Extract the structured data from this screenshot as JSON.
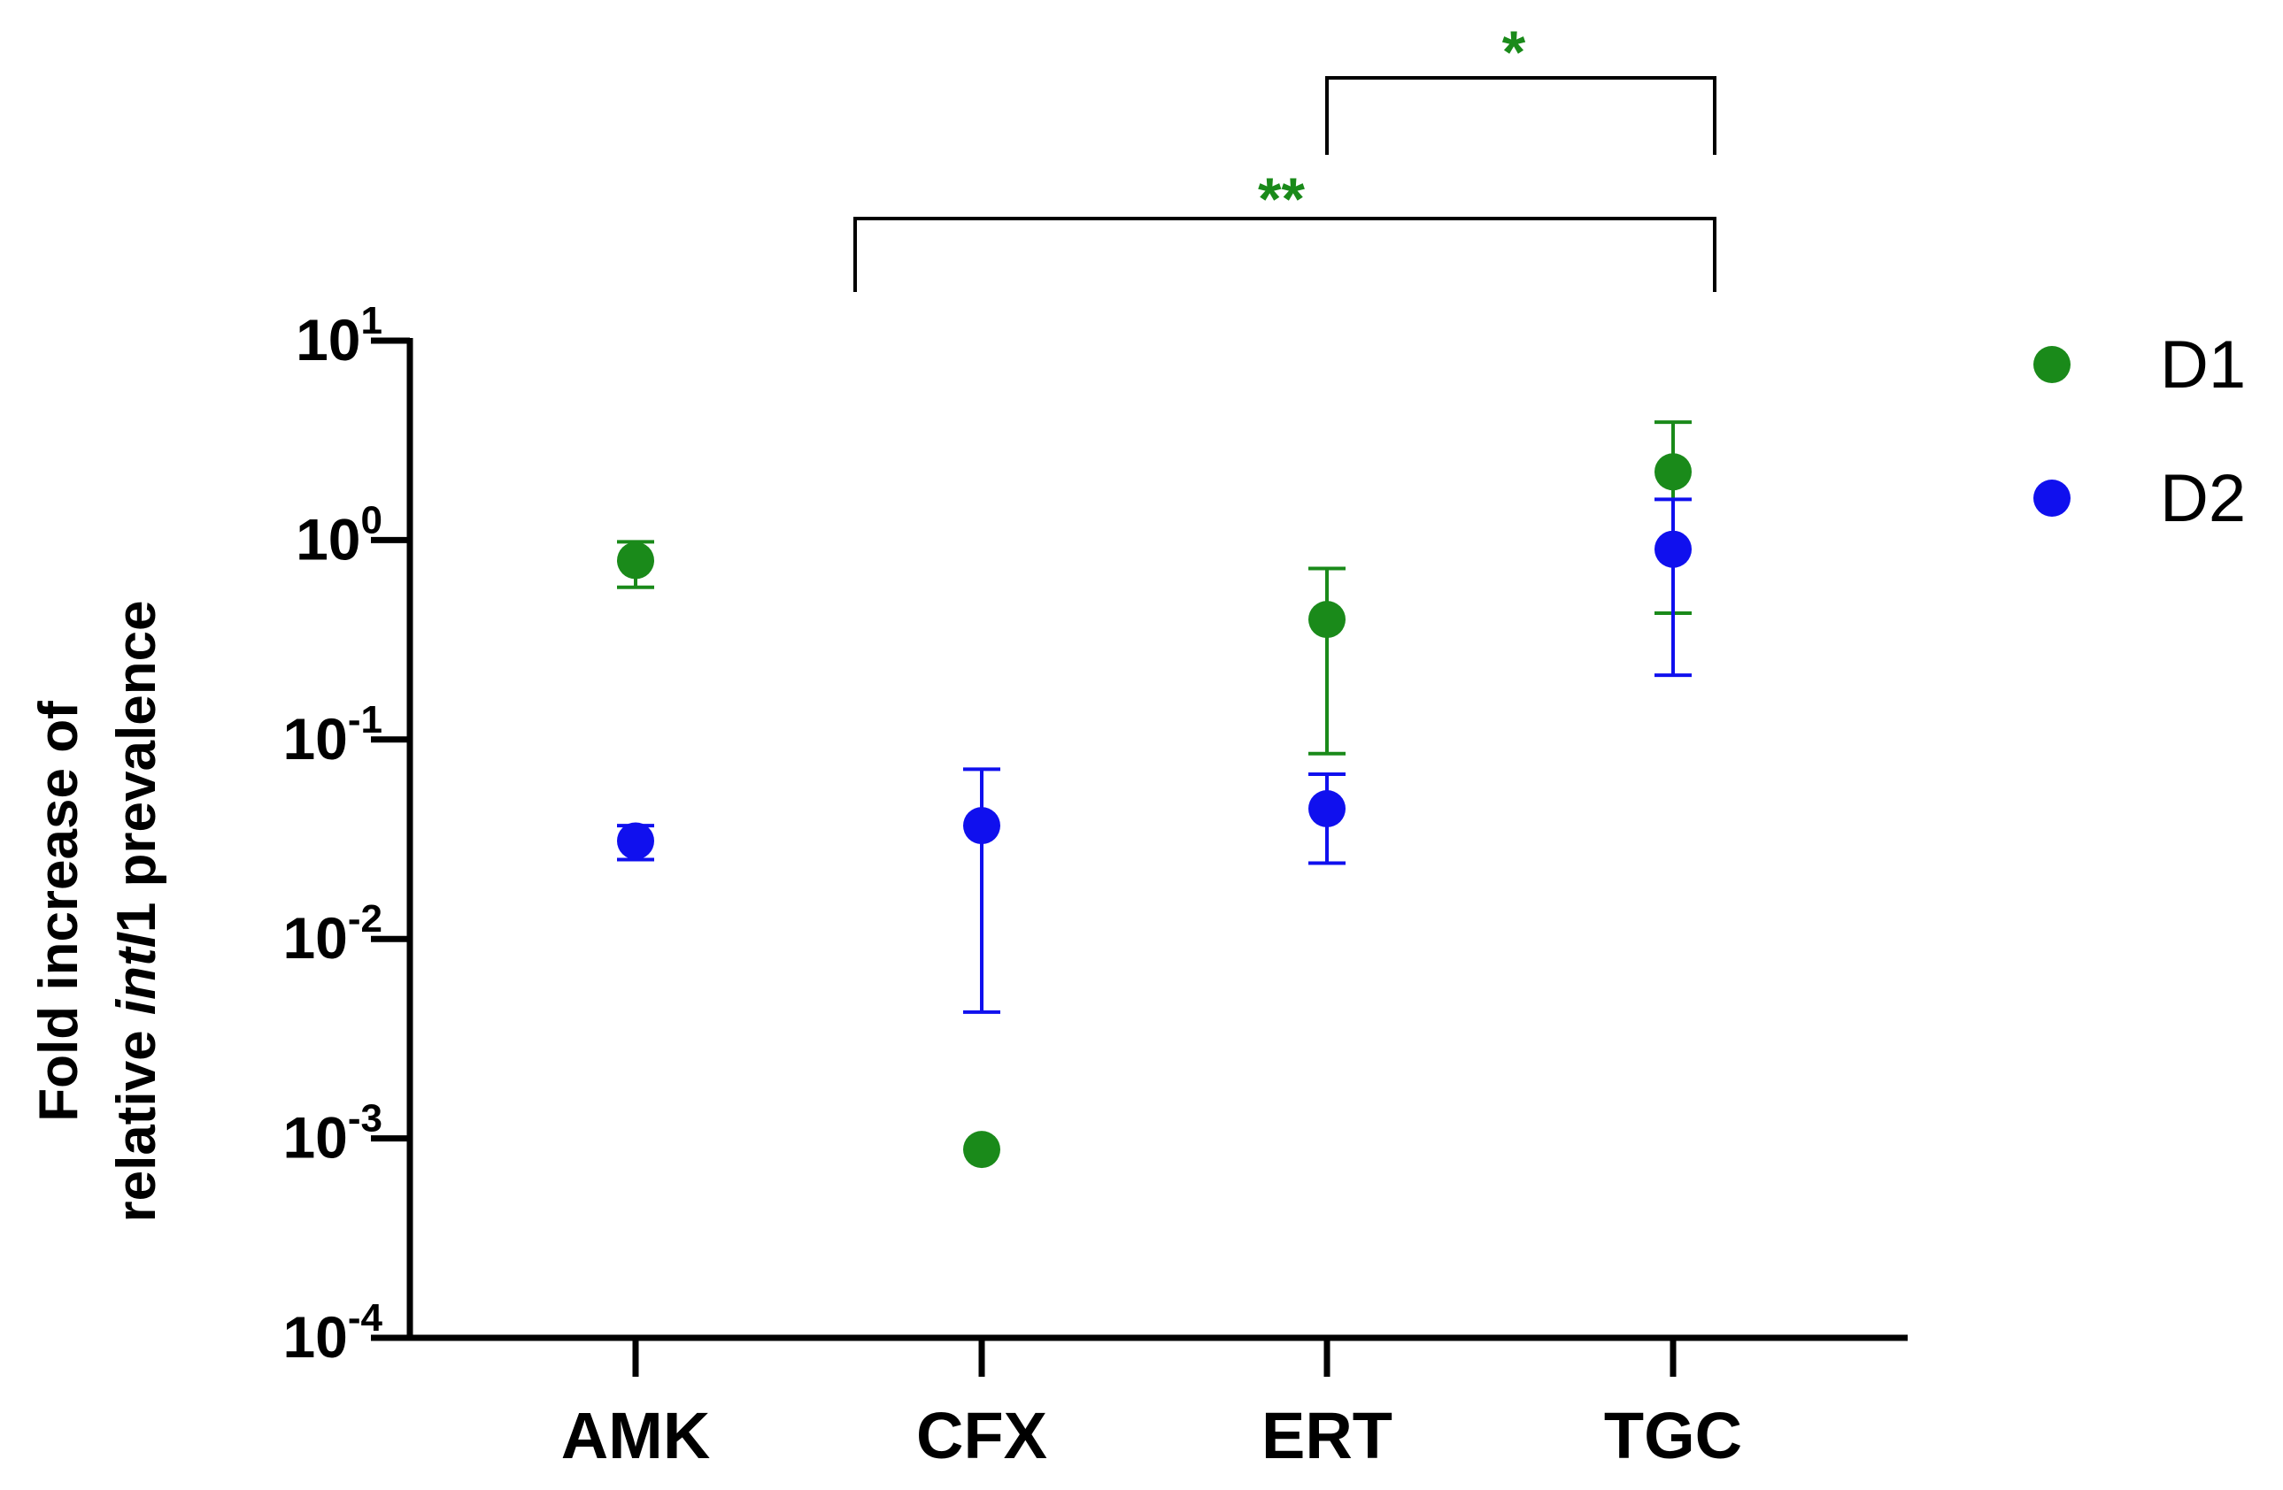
{
  "chart_data": {
    "type": "scatter",
    "title": "",
    "xlabel": "",
    "ylabel_line1": "Fold increase of",
    "ylabel_line2_pre": "relative ",
    "ylabel_line2_italic": "intI",
    "ylabel_line2_post": "1 prevalence",
    "yscale": "log",
    "ylim": [
      0.0001,
      10
    ],
    "yticks": [
      {
        "base": "10",
        "exp": "1",
        "value": 10
      },
      {
        "base": "10",
        "exp": "0",
        "value": 1
      },
      {
        "base": "10",
        "exp": "-1",
        "value": 0.1
      },
      {
        "base": "10",
        "exp": "-2",
        "value": 0.01
      },
      {
        "base": "10",
        "exp": "-3",
        "value": 0.001
      },
      {
        "base": "10",
        "exp": "-4",
        "value": 0.0001
      }
    ],
    "categories": [
      "AMK",
      "CFX",
      "ERT",
      "TGC"
    ],
    "series": [
      {
        "name": "D1",
        "color": "#1a8a1a",
        "values": [
          0.79,
          0.00088,
          0.4,
          2.2
        ],
        "err_low": [
          0.58,
          null,
          0.085,
          0.43
        ],
        "err_high": [
          0.98,
          null,
          0.72,
          3.9
        ]
      },
      {
        "name": "D2",
        "color": "#1010ee",
        "values": [
          0.031,
          0.037,
          0.045,
          0.9
        ],
        "err_low": [
          0.025,
          0.0043,
          0.024,
          0.21
        ],
        "err_high": [
          0.037,
          0.071,
          0.067,
          1.6
        ]
      }
    ],
    "significance": [
      {
        "from": "ERT",
        "to": "TGC",
        "label": "*",
        "color": "#1a8a1a"
      },
      {
        "from": "CFX",
        "to": "TGC",
        "label": "**",
        "color": "#1a8a1a"
      }
    ],
    "legend_position": "top-right"
  }
}
